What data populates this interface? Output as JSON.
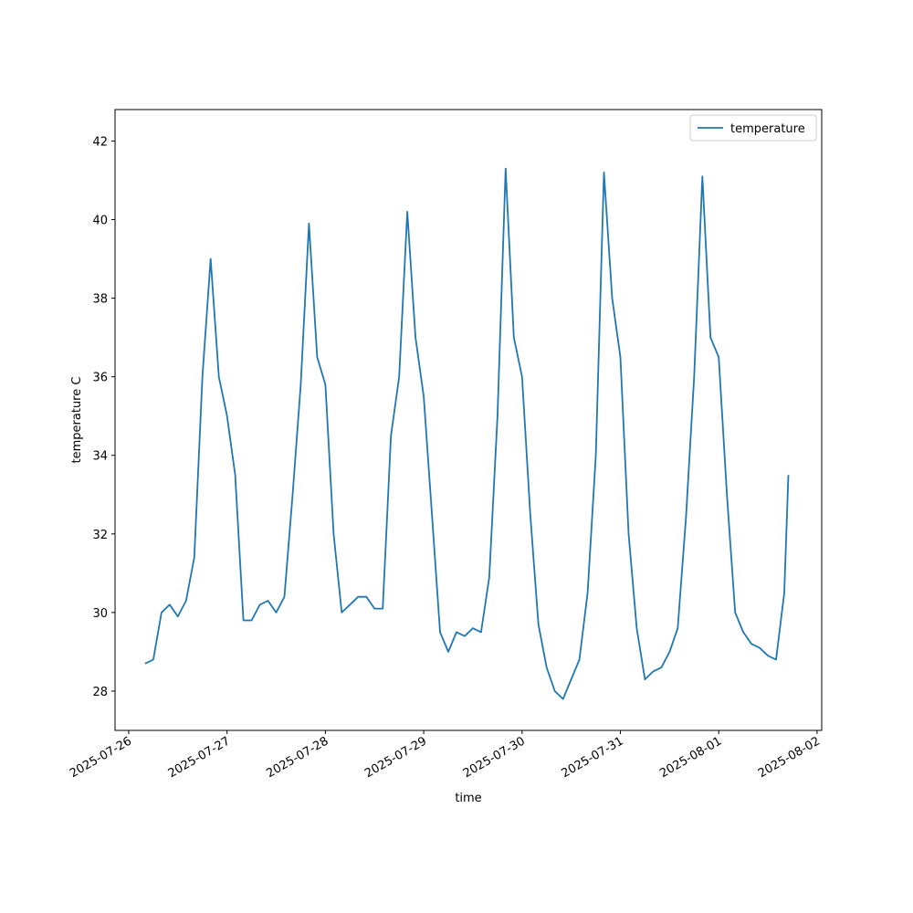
{
  "chart_data": {
    "type": "line",
    "x_label": "time",
    "y_label": "temperature C",
    "x": [
      "2025-07-26T04:00",
      "2025-07-26T06:00",
      "2025-07-26T08:00",
      "2025-07-26T10:00",
      "2025-07-26T12:00",
      "2025-07-26T14:00",
      "2025-07-26T16:00",
      "2025-07-26T18:00",
      "2025-07-26T20:00",
      "2025-07-26T22:00",
      "2025-07-27T00:00",
      "2025-07-27T02:00",
      "2025-07-27T04:00",
      "2025-07-27T06:00",
      "2025-07-27T08:00",
      "2025-07-27T10:00",
      "2025-07-27T12:00",
      "2025-07-27T14:00",
      "2025-07-27T16:00",
      "2025-07-27T18:00",
      "2025-07-27T20:00",
      "2025-07-27T22:00",
      "2025-07-28T00:00",
      "2025-07-28T02:00",
      "2025-07-28T04:00",
      "2025-07-28T06:00",
      "2025-07-28T08:00",
      "2025-07-28T10:00",
      "2025-07-28T12:00",
      "2025-07-28T14:00",
      "2025-07-28T16:00",
      "2025-07-28T18:00",
      "2025-07-28T20:00",
      "2025-07-28T22:00",
      "2025-07-29T00:00",
      "2025-07-29T02:00",
      "2025-07-29T04:00",
      "2025-07-29T06:00",
      "2025-07-29T08:00",
      "2025-07-29T10:00",
      "2025-07-29T12:00",
      "2025-07-29T14:00",
      "2025-07-29T16:00",
      "2025-07-29T18:00",
      "2025-07-29T20:00",
      "2025-07-29T22:00",
      "2025-07-30T00:00",
      "2025-07-30T02:00",
      "2025-07-30T04:00",
      "2025-07-30T06:00",
      "2025-07-30T08:00",
      "2025-07-30T10:00",
      "2025-07-30T12:00",
      "2025-07-30T14:00",
      "2025-07-30T16:00",
      "2025-07-30T18:00",
      "2025-07-30T20:00",
      "2025-07-30T22:00",
      "2025-07-31T00:00",
      "2025-07-31T02:00",
      "2025-07-31T04:00",
      "2025-07-31T06:00",
      "2025-07-31T08:00",
      "2025-07-31T10:00",
      "2025-07-31T12:00",
      "2025-07-31T14:00",
      "2025-07-31T16:00",
      "2025-07-31T18:00",
      "2025-07-31T20:00",
      "2025-07-31T22:00",
      "2025-08-01T00:00",
      "2025-08-01T02:00",
      "2025-08-01T04:00",
      "2025-08-01T06:00",
      "2025-08-01T08:00",
      "2025-08-01T10:00",
      "2025-08-01T12:00",
      "2025-08-01T14:00",
      "2025-08-01T16:00",
      "2025-08-01T17:00"
    ],
    "series": [
      {
        "name": "temperature",
        "color": "#1f77b4",
        "values": [
          28.7,
          28.8,
          30.0,
          30.2,
          29.9,
          30.3,
          31.4,
          36.0,
          39.0,
          36.0,
          35.0,
          33.5,
          29.8,
          29.8,
          30.2,
          30.3,
          30.0,
          30.4,
          33.0,
          35.8,
          39.9,
          36.5,
          35.8,
          32.0,
          30.0,
          30.2,
          30.4,
          30.4,
          30.1,
          30.1,
          34.5,
          36.0,
          40.2,
          37.0,
          35.5,
          32.5,
          29.5,
          29.0,
          29.5,
          29.4,
          29.6,
          29.5,
          30.9,
          35.0,
          41.3,
          37.0,
          36.0,
          32.5,
          29.7,
          28.6,
          28.0,
          27.8,
          28.3,
          28.8,
          30.5,
          34.0,
          41.2,
          38.0,
          36.5,
          32.0,
          29.6,
          28.3,
          28.5,
          28.6,
          29.0,
          29.6,
          32.4,
          36.0,
          41.1,
          37.0,
          36.5,
          33.0,
          30.0,
          29.5,
          29.2,
          29.1,
          28.9,
          28.8,
          30.5,
          33.5
        ]
      }
    ],
    "xlim": [
      "2025-07-25T20:40",
      "2025-08-02T01:08"
    ],
    "xticks": [
      "2025-07-26",
      "2025-07-27",
      "2025-07-28",
      "2025-07-29",
      "2025-07-30",
      "2025-07-31",
      "2025-08-01",
      "2025-08-02"
    ],
    "ylim": [
      27.0,
      42.8
    ],
    "yticks": [
      28,
      30,
      32,
      34,
      36,
      38,
      40,
      42
    ],
    "legend": "upper right"
  }
}
